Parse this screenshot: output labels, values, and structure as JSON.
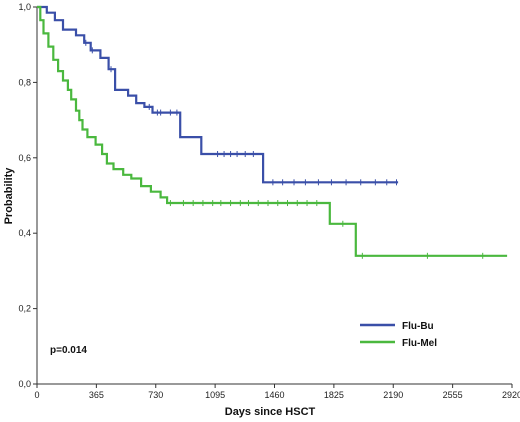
{
  "chart_data": {
    "type": "line",
    "subtype": "kaplan-meier",
    "title": "",
    "xlabel": "Days since HSCT",
    "ylabel": "Probability",
    "xlim": [
      0,
      2920
    ],
    "ylim": [
      0,
      1
    ],
    "x_ticks": [
      0,
      365,
      730,
      1095,
      1460,
      1825,
      2190,
      2555,
      2920
    ],
    "x_tick_labels": [
      "0",
      "365",
      "730",
      "1095",
      "1460",
      "1825",
      "2190",
      "2555",
      "2920"
    ],
    "y_ticks": [
      0,
      0.2,
      0.4,
      0.6,
      0.8,
      1.0
    ],
    "y_tick_labels": [
      "0,0",
      "0,2",
      "0,4",
      "0,6",
      "0,8",
      "1,0"
    ],
    "grid": false,
    "legend_position": "bottom-right",
    "annotation": "p=0.014",
    "series": [
      {
        "name": "Flu-Bu",
        "color": "#3a4fa8",
        "steps": [
          [
            0,
            1.0
          ],
          [
            60,
            0.985
          ],
          [
            110,
            0.965
          ],
          [
            160,
            0.94
          ],
          [
            240,
            0.925
          ],
          [
            290,
            0.905
          ],
          [
            330,
            0.885
          ],
          [
            390,
            0.865
          ],
          [
            440,
            0.835
          ],
          [
            480,
            0.78
          ],
          [
            560,
            0.765
          ],
          [
            610,
            0.745
          ],
          [
            660,
            0.735
          ],
          [
            710,
            0.72
          ],
          [
            880,
            0.655
          ],
          [
            1010,
            0.61
          ],
          [
            1390,
            0.535
          ],
          [
            2220,
            0.535
          ]
        ],
        "censors": [
          300,
          340,
          455,
          690,
          740,
          760,
          820,
          860,
          1110,
          1150,
          1190,
          1230,
          1280,
          1330,
          1450,
          1510,
          1580,
          1650,
          1730,
          1810,
          1900,
          1990,
          2080,
          2150,
          2210
        ]
      },
      {
        "name": "Flu-Mel",
        "color": "#4ab83e",
        "steps": [
          [
            0,
            1.0
          ],
          [
            20,
            0.965
          ],
          [
            40,
            0.93
          ],
          [
            70,
            0.895
          ],
          [
            100,
            0.86
          ],
          [
            130,
            0.83
          ],
          [
            160,
            0.805
          ],
          [
            190,
            0.78
          ],
          [
            210,
            0.755
          ],
          [
            240,
            0.725
          ],
          [
            260,
            0.7
          ],
          [
            280,
            0.675
          ],
          [
            310,
            0.655
          ],
          [
            360,
            0.635
          ],
          [
            400,
            0.61
          ],
          [
            430,
            0.585
          ],
          [
            470,
            0.57
          ],
          [
            530,
            0.555
          ],
          [
            580,
            0.545
          ],
          [
            640,
            0.525
          ],
          [
            700,
            0.51
          ],
          [
            760,
            0.495
          ],
          [
            800,
            0.48
          ],
          [
            1800,
            0.425
          ],
          [
            1960,
            0.34
          ],
          [
            2890,
            0.34
          ]
        ],
        "censors": [
          820,
          900,
          960,
          1020,
          1080,
          1130,
          1190,
          1250,
          1300,
          1360,
          1420,
          1480,
          1540,
          1600,
          1660,
          1720,
          1880,
          2000,
          2400,
          2740
        ]
      }
    ]
  }
}
